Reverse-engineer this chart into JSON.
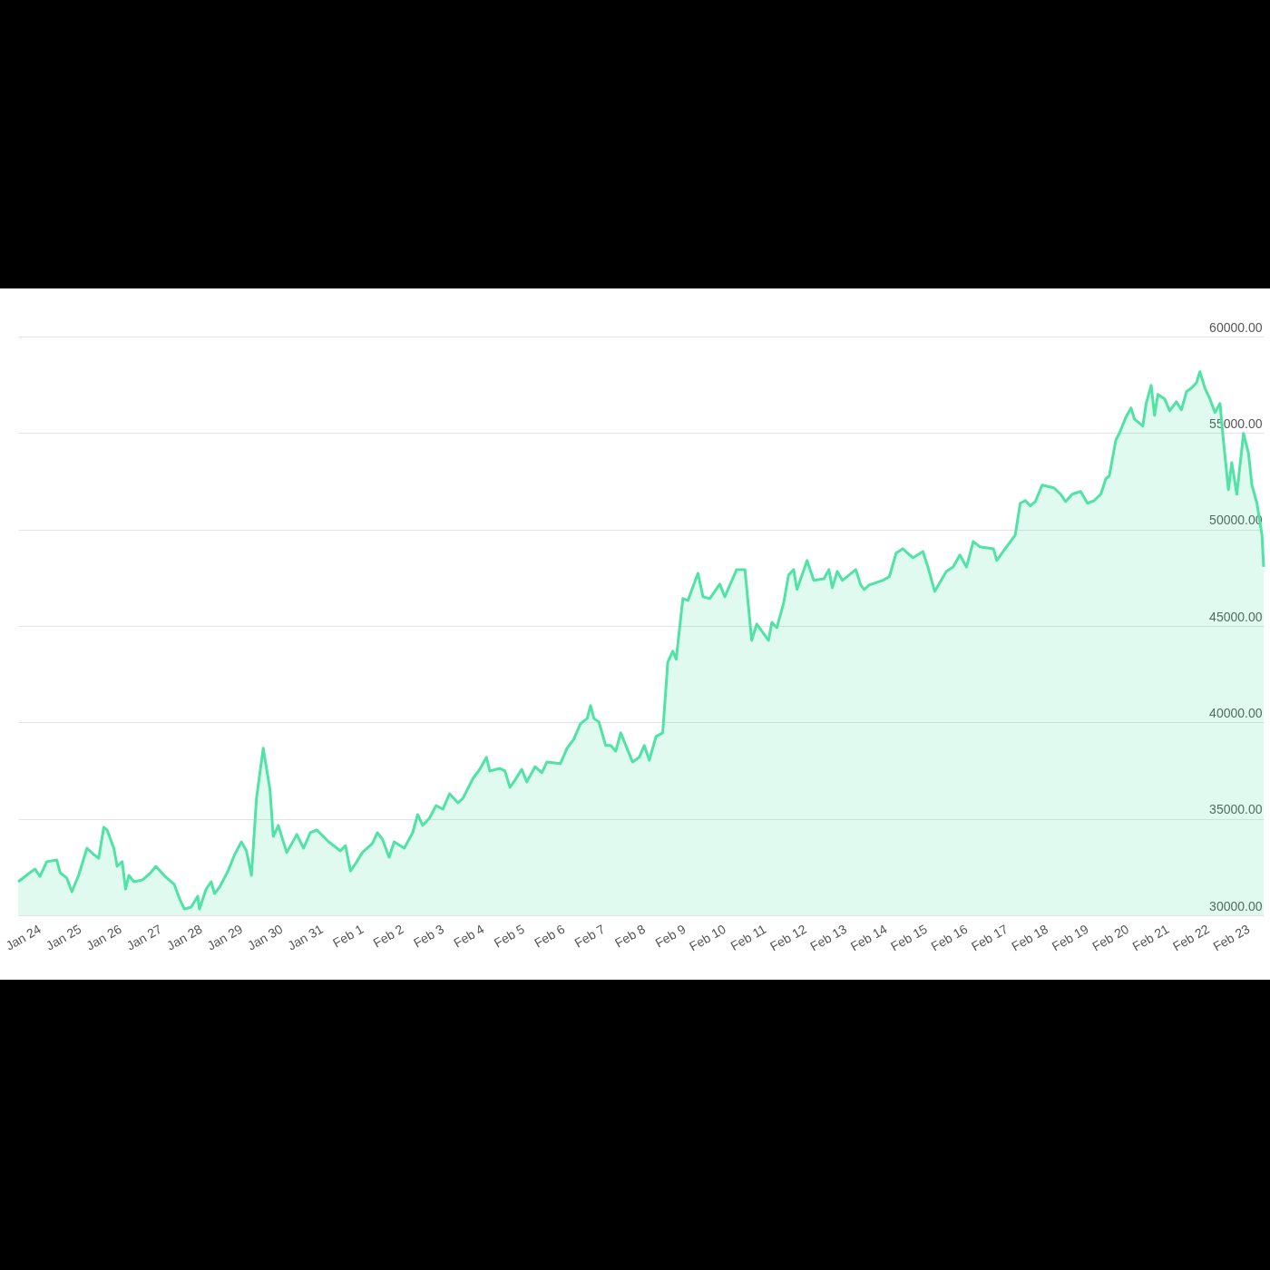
{
  "chart_data": {
    "type": "area",
    "color": "#4fe3a5",
    "grid": "y",
    "x": [
      "--01-23T13:00",
      "--01-23T20:00",
      "--01-23T23:00",
      "--01-24T02:00",
      "--01-24T06:00",
      "--01-24T12:00",
      "--01-24T14:00",
      "--01-24T18:00",
      "--01-24T21:00",
      "--01-25T01:00",
      "--01-25T06:00",
      "--01-25T10:00",
      "--01-25T13:00",
      "--01-25T16:00",
      "--01-25T18:00",
      "--01-25T22:00",
      "--01-26T00:00",
      "--01-26T03:00",
      "--01-26T05:00",
      "--01-26T07:00",
      "--01-26T10:00",
      "--01-26T15:00",
      "--01-26T20:00",
      "--01-26T23:00",
      "--01-27T05:00",
      "--01-27T10:00",
      "--01-27T13:00",
      "--01-27T16:00",
      "--01-27T20:00",
      "--01-28T00:00",
      "--01-28T01:00",
      "--01-28T05:00",
      "--01-28T08:00",
      "--01-28T10:00",
      "--01-28T13:00",
      "--01-28T18:00",
      "--01-28T22:00",
      "--01-29T02:00",
      "--01-29T05:00",
      "--01-29T08:00",
      "--01-29T11:00",
      "--01-29T15:00",
      "--01-29T19:00",
      "--01-29T21:00",
      "--01-30T00:00",
      "--01-30T05:00",
      "--01-30T11:00",
      "--01-30T15:00",
      "--01-30T19:00",
      "--01-30T23:00",
      "--01-31T06:00",
      "--01-31T13:00",
      "--01-31T16:00",
      "--01-31T19:00",
      "--01-31T22:00",
      "--02-01T02:00",
      "--02-01T08:00",
      "--02-01T11:00",
      "--02-01T14:00",
      "--02-01T18:00",
      "--02-01T21:00",
      "--02-02T03:00",
      "--02-02T08:00",
      "--02-02T11:00",
      "--02-02T14:00",
      "--02-02T18:00",
      "--02-02T22:00",
      "--02-03T02:00",
      "--02-03T06:00",
      "--02-03T11:00",
      "--02-03T14:00",
      "--02-03T20:00",
      "--02-04T00:00",
      "--02-04T04:00",
      "--02-04T06:00",
      "--02-04T12:00",
      "--02-04T15:00",
      "--02-04T18:00",
      "--02-04T21:00",
      "--02-05T01:00",
      "--02-05T04:00",
      "--02-05T09:00",
      "--02-05T13:00",
      "--02-05T16:00",
      "--02-06T00:00",
      "--02-06T04:00",
      "--02-06T08:00",
      "--02-06T12:00",
      "--02-06T16:00",
      "--02-06T18:00",
      "--02-06T20:00",
      "--02-06T23:00",
      "--02-07T03:00",
      "--02-07T06:00",
      "--02-07T09:00",
      "--02-07T12:00",
      "--02-07T19:00",
      "--02-07T23:00",
      "--02-08T02:00",
      "--02-08T05:00",
      "--02-08T09:00",
      "--02-08T13:00",
      "--02-08T16:00",
      "--02-08T19:00",
      "--02-08T21:00",
      "--02-09T01:00",
      "--02-09T04:00",
      "--02-09T10:00",
      "--02-09T13:00",
      "--02-09T17:00",
      "--02-09T20:00",
      "--02-09T23:00",
      "--02-10T02:00",
      "--02-10T09:00",
      "--02-10T14:00",
      "--02-10T18:00",
      "--02-10T21:00",
      "--02-11T04:00",
      "--02-11T06:00",
      "--02-11T09:00",
      "--02-11T13:00",
      "--02-11T16:00",
      "--02-11T19:00",
      "--02-11T21:00",
      "--02-12T03:00",
      "--02-12T07:00",
      "--02-12T13:00",
      "--02-12T16:00",
      "--02-12T18:00",
      "--02-12T21:00",
      "--02-13T00:00",
      "--02-13T08:00",
      "--02-13T11:00",
      "--02-13T13:00",
      "--02-13T16:00",
      "--02-14T00:00",
      "--02-14T04:00",
      "--02-14T08:00",
      "--02-14T12:00",
      "--02-14T18:00",
      "--02-15T00:00",
      "--02-15T03:00",
      "--02-15T07:00",
      "--02-15T14:00",
      "--02-15T18:00",
      "--02-15T22:00",
      "--02-16T02:00",
      "--02-16T06:00",
      "--02-16T10:00",
      "--02-16T18:00",
      "--02-16T20:00",
      "--02-17T01:00",
      "--02-17T07:00",
      "--02-17T10:00",
      "--02-17T13:00",
      "--02-17T16:00",
      "--02-17T19:00",
      "--02-17T23:00",
      "--02-18T06:00",
      "--02-18T10:00",
      "--02-18T13:00",
      "--02-18T17:00",
      "--02-18T22:00",
      "--02-19T02:00",
      "--02-19T06:00",
      "--02-19T10:00",
      "--02-19T13:00",
      "--02-19T15:00",
      "--02-19T19:00",
      "--02-19T21:00",
      "--02-20T01:00",
      "--02-20T04:00",
      "--02-20T06:00",
      "--02-20T11:00",
      "--02-20T13:00",
      "--02-20T16:00",
      "--02-20T18:00",
      "--02-20T20:00",
      "--02-21T00:00",
      "--02-21T03:00",
      "--02-21T07:00",
      "--02-21T10:00",
      "--02-21T13:00",
      "--02-21T16:00",
      "--02-21T19:00",
      "--02-21T21:00",
      "--02-22T00:00",
      "--02-22T03:00",
      "--02-22T06:00",
      "--02-22T09:00",
      "--02-22T11:00",
      "--02-22T14:00",
      "--02-22T16:00",
      "--02-22T19:00",
      "--02-22T23:00",
      "--02-23T02:00",
      "--02-23T04:00",
      "--02-23T07:00",
      "--02-23T10:00",
      "--02-23T11:00"
    ],
    "values": [
      31740,
      32210,
      32400,
      32020,
      32780,
      32870,
      32210,
      31930,
      31220,
      32070,
      33480,
      33150,
      32960,
      34560,
      34420,
      33480,
      32540,
      32780,
      31360,
      32070,
      31740,
      31830,
      32210,
      32540,
      31980,
      31600,
      30890,
      30330,
      30420,
      30990,
      30330,
      31360,
      31740,
      31130,
      31460,
      32300,
      33150,
      33810,
      33340,
      32070,
      36070,
      38660,
      36540,
      34090,
      34660,
      33250,
      34190,
      33480,
      34280,
      34420,
      33810,
      33340,
      33620,
      32300,
      32680,
      33250,
      33720,
      34280,
      33950,
      33010,
      33810,
      33480,
      34280,
      35220,
      34660,
      35030,
      35690,
      35500,
      36300,
      35830,
      36070,
      37100,
      37570,
      38190,
      37480,
      37620,
      37480,
      36630,
      37010,
      37570,
      36910,
      37710,
      37390,
      37950,
      37860,
      38660,
      39130,
      39930,
      40210,
      40870,
      40210,
      40020,
      38800,
      38800,
      38510,
      39460,
      37950,
      38190,
      38800,
      38040,
      39270,
      39460,
      43120,
      43690,
      43270,
      46420,
      46320,
      47730,
      46510,
      46420,
      46790,
      47170,
      46510,
      47920,
      47920,
      44250,
      45100,
      44250,
      45190,
      44910,
      46180,
      47640,
      47920,
      46890,
      48390,
      47360,
      47450,
      47920,
      46980,
      47830,
      47360,
      47920,
      47120,
      46890,
      47120,
      47360,
      47550,
      48770,
      49000,
      48530,
      48860,
      48060,
      46790,
      47830,
      48060,
      48680,
      48060,
      49380,
      49100,
      49000,
      48390,
      49000,
      49710,
      51360,
      51500,
      51220,
      51450,
      52300,
      52160,
      51830,
      51450,
      51830,
      51970,
      51360,
      51500,
      51830,
      52630,
      52770,
      54650,
      54980,
      55830,
      56300,
      55730,
      55360,
      56530,
      57470,
      55920,
      57000,
      56770,
      56150,
      56620,
      56200,
      57140,
      57330,
      57610,
      58180,
      57330,
      56770,
      56060,
      56530,
      54650,
      52060,
      53470,
      51830,
      54980,
      53940,
      52300,
      51360,
      49710,
      48060
    ],
    "xlim": [
      "--01-23T13:00",
      "--02-23T11:00"
    ],
    "xticks": [
      {
        "value": "--01-24",
        "label": "Jan 24"
      },
      {
        "value": "--01-25",
        "label": "Jan 25"
      },
      {
        "value": "--01-26",
        "label": "Jan 26"
      },
      {
        "value": "--01-27",
        "label": "Jan 27"
      },
      {
        "value": "--01-28",
        "label": "Jan 28"
      },
      {
        "value": "--01-29",
        "label": "Jan 29"
      },
      {
        "value": "--01-30",
        "label": "Jan 30"
      },
      {
        "value": "--01-31",
        "label": "Jan 31"
      },
      {
        "value": "--02-01",
        "label": "Feb 1"
      },
      {
        "value": "--02-02",
        "label": "Feb 2"
      },
      {
        "value": "--02-03",
        "label": "Feb 3"
      },
      {
        "value": "--02-04",
        "label": "Feb 4"
      },
      {
        "value": "--02-05",
        "label": "Feb 5"
      },
      {
        "value": "--02-06",
        "label": "Feb 6"
      },
      {
        "value": "--02-07",
        "label": "Feb 7"
      },
      {
        "value": "--02-08",
        "label": "Feb 8"
      },
      {
        "value": "--02-09",
        "label": "Feb 9"
      },
      {
        "value": "--02-10",
        "label": "Feb 10"
      },
      {
        "value": "--02-11",
        "label": "Feb 11"
      },
      {
        "value": "--02-12",
        "label": "Feb 12"
      },
      {
        "value": "--02-13",
        "label": "Feb 13"
      },
      {
        "value": "--02-14",
        "label": "Feb 14"
      },
      {
        "value": "--02-15",
        "label": "Feb 15"
      },
      {
        "value": "--02-16",
        "label": "Feb 16"
      },
      {
        "value": "--02-17",
        "label": "Feb 17"
      },
      {
        "value": "--02-18",
        "label": "Feb 18"
      },
      {
        "value": "--02-19",
        "label": "Feb 19"
      },
      {
        "value": "--02-20",
        "label": "Feb 20"
      },
      {
        "value": "--02-21",
        "label": "Feb 21"
      },
      {
        "value": "--02-22",
        "label": "Feb 22"
      },
      {
        "value": "--02-23",
        "label": "Feb 23"
      }
    ],
    "ylim": [
      30000,
      60000
    ],
    "yticks": [
      {
        "value": 30000,
        "label": "30000.00"
      },
      {
        "value": 35000,
        "label": "35000.00"
      },
      {
        "value": 40000,
        "label": "40000.00"
      },
      {
        "value": 45000,
        "label": "45000.00"
      },
      {
        "value": 50000,
        "label": "50000.00"
      },
      {
        "value": 55000,
        "label": "55000.00"
      },
      {
        "value": 60000,
        "label": "60000.00"
      }
    ]
  }
}
